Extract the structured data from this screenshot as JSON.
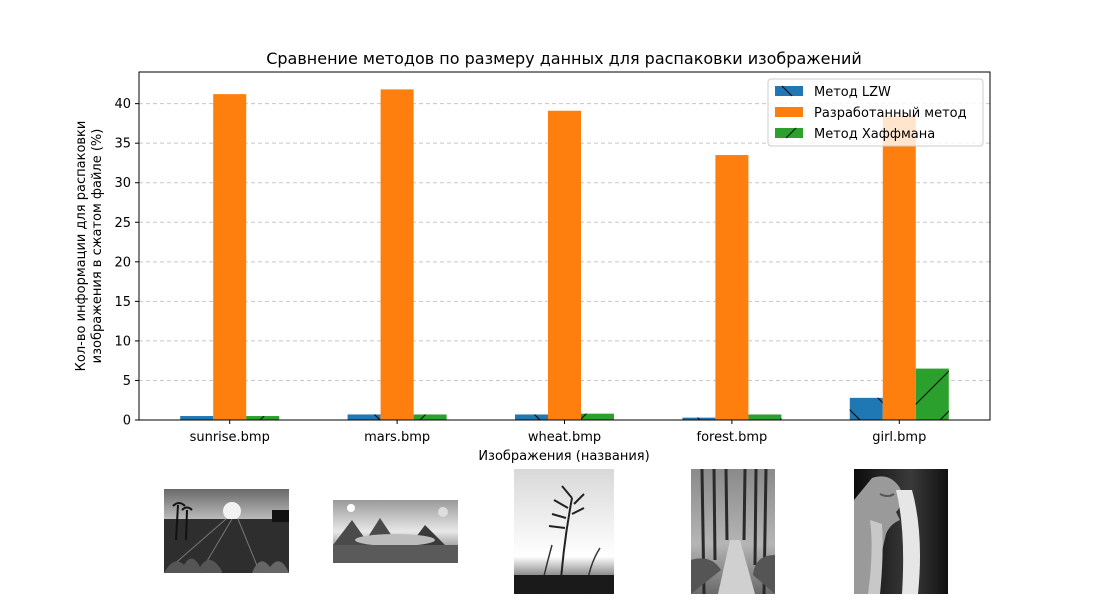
{
  "chart_data": {
    "type": "bar",
    "title": "Сравнение методов по размеру данных для распаковки изображений",
    "xlabel": "Изображения (названия)",
    "ylabel_line1": "Кол-во информации для распаковки",
    "ylabel_line2": "изображения в сжатом файле (%)",
    "categories": [
      "sunrise.bmp",
      "mars.bmp",
      "wheat.bmp",
      "forest.bmp",
      "girl.bmp"
    ],
    "ylim": [
      0,
      44
    ],
    "yticks": [
      0,
      5,
      10,
      15,
      20,
      25,
      30,
      35,
      40
    ],
    "grid": "y-dashed",
    "legend_position": "top-right",
    "series": [
      {
        "name": "Метод LZW",
        "color": "#1f77b4",
        "hatch": "backslash",
        "values": [
          0.5,
          0.7,
          0.7,
          0.3,
          2.8
        ]
      },
      {
        "name": "Разработанный метод",
        "color": "#ff7f0e",
        "hatch": "none",
        "values": [
          41.2,
          41.8,
          39.1,
          33.5,
          38.5
        ]
      },
      {
        "name": "Метод Хаффмана",
        "color": "#2ca02c",
        "hatch": "slash",
        "values": [
          0.5,
          0.7,
          0.8,
          0.7,
          6.5
        ]
      }
    ],
    "thumbnails": [
      {
        "name": "sunrise-thumbnail",
        "scene": "palm trees, sun and field at sunset (grayscale)"
      },
      {
        "name": "mars-thumbnail",
        "scene": "alien landscape with mountains and planets (grayscale)"
      },
      {
        "name": "wheat-thumbnail",
        "scene": "wheat ear against bright sky (grayscale)"
      },
      {
        "name": "forest-thumbnail",
        "scene": "path through autumn forest (grayscale)"
      },
      {
        "name": "girl-thumbnail",
        "scene": "portrait of a woman with long hair (grayscale)"
      }
    ]
  }
}
